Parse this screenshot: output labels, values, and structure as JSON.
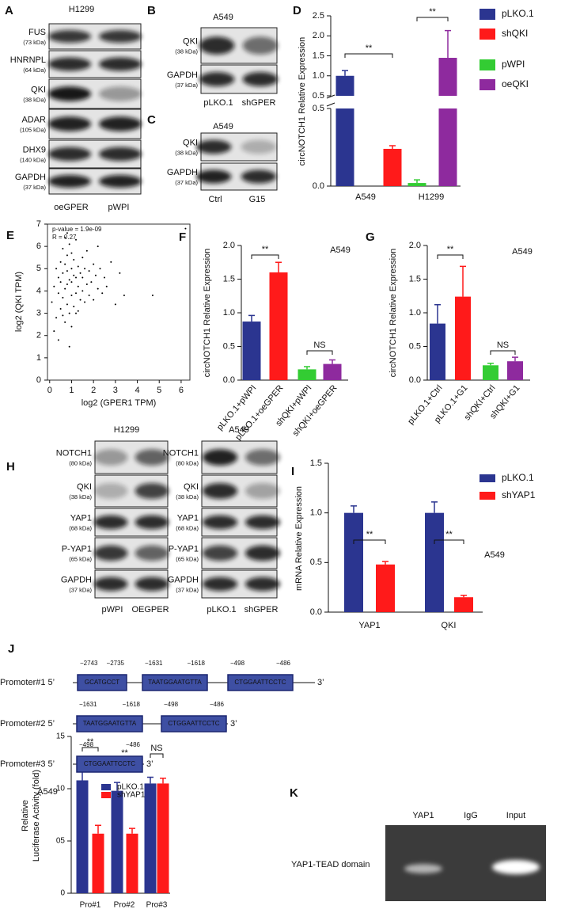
{
  "panel_labels": [
    "A",
    "B",
    "C",
    "D",
    "E",
    "F",
    "G",
    "H",
    "I",
    "J",
    "K"
  ],
  "blots": [
    {
      "title": "H1299",
      "rows": [
        {
          "name": "FUS",
          "size": "(73 kDa)"
        },
        {
          "name": "HNRNPL",
          "size": "(64 kDa)"
        },
        {
          "name": "QKI",
          "size": "(38 kDa)"
        },
        {
          "name": "ADAR",
          "size": "(105 kDa)"
        },
        {
          "name": "DHX9",
          "size": "(140 kDa)"
        },
        {
          "name": "GAPDH",
          "size": "(37 kDa)"
        }
      ],
      "lanes": [
        "oeGPER",
        "pWPI"
      ]
    },
    {
      "title": "A549",
      "rows": [
        {
          "name": "QKI",
          "size": "(38 kDa)"
        },
        {
          "name": "GAPDH",
          "size": "(37 kDa)"
        }
      ],
      "lanes": [
        "pLKO.1",
        "shGPER"
      ]
    },
    {
      "title": "A549",
      "rows": [
        {
          "name": "QKI",
          "size": "(38 kDa)"
        },
        {
          "name": "GAPDH",
          "size": "(37 kDa)"
        }
      ],
      "lanes": [
        "Ctrl",
        "G15"
      ]
    },
    {
      "title": "H1299",
      "rows": [
        {
          "name": "NOTCH1",
          "size": "(80 kDa)"
        },
        {
          "name": "QKI",
          "size": "(38 kDa)"
        },
        {
          "name": "YAP1",
          "size": "(68 kDa)"
        },
        {
          "name": "P-YAP1",
          "size": "(65 kDa)"
        },
        {
          "name": "GAPDH",
          "size": "(37 kDa)"
        }
      ],
      "lanes": [
        "pWPI",
        "OEGPER"
      ]
    },
    {
      "title": "A549",
      "rows": [
        {
          "name": "NOTCH1",
          "size": "(80 kDa)"
        },
        {
          "name": "QKI",
          "size": "(38 kDa)"
        },
        {
          "name": "YAP1",
          "size": "(68 kDa)"
        },
        {
          "name": "P-YAP1",
          "size": "(65 kDa)"
        },
        {
          "name": "GAPDH",
          "size": "(37 kDa)"
        }
      ],
      "lanes": [
        "pLKO.1",
        "shGPER"
      ]
    }
  ],
  "chart_data": [
    {
      "type": "bar",
      "ylabel": "circNOTCH1 Relative Expression",
      "categories": [
        "A549",
        "H1299"
      ],
      "series": [
        {
          "name": "pLKO.1",
          "color": "#2b3590",
          "values": [
            1.0,
            null
          ],
          "errors": [
            0.13,
            null
          ]
        },
        {
          "name": "shQKI",
          "color": "#ff1a1a",
          "values": [
            0.24,
            null
          ],
          "errors": [
            0.02,
            null
          ]
        },
        {
          "name": "pWPI",
          "color": "#33cc33",
          "values": [
            null,
            0.02
          ],
          "errors": [
            null,
            0.02
          ]
        },
        {
          "name": "oeQKI",
          "color": "#8e2a9e",
          "values": [
            null,
            1.45
          ],
          "errors": [
            null,
            0.68
          ]
        }
      ],
      "ylim_lower": [
        0,
        0.5
      ],
      "yticks_lower": [
        {
          "value": 0,
          "label": "0.0"
        },
        0.5
      ],
      "ylim_upper": [
        0.5,
        2.5
      ],
      "yticks_upper": [
        0.5,
        {
          "value": 1,
          "label": "1.0"
        },
        1.5,
        {
          "value": 2,
          "label": "2.0"
        },
        2.5
      ],
      "annotations": [
        "**",
        "**"
      ]
    },
    {
      "type": "scatter",
      "xlabel": "log2 (GPER1 TPM)",
      "ylabel": "log2 (QKI TPM)",
      "annotations": [
        "p-value = 1.9e-09",
        "R = 0.27"
      ],
      "color": "#000000",
      "x": [
        0.1,
        0.2,
        0.3,
        0.3,
        0.4,
        0.4,
        0.5,
        0.5,
        0.5,
        0.6,
        0.6,
        0.6,
        0.7,
        0.7,
        0.7,
        0.8,
        0.8,
        0.8,
        0.8,
        0.9,
        0.9,
        0.9,
        1.0,
        1.0,
        1.0,
        1.0,
        1.1,
        1.1,
        1.1,
        1.2,
        1.2,
        1.2,
        1.3,
        1.3,
        1.3,
        1.4,
        1.4,
        1.5,
        1.5,
        1.5,
        1.6,
        1.6,
        1.7,
        1.7,
        1.8,
        1.8,
        1.9,
        2.0,
        2.0,
        2.1,
        2.2,
        2.3,
        2.4,
        2.5,
        2.6,
        2.8,
        3.0,
        3.2,
        3.4,
        0.2,
        0.4,
        0.6,
        0.8,
        1.0,
        1.2,
        0.9,
        0.7,
        4.7,
        6.2,
        2.2
      ],
      "values": [
        3.5,
        4.2,
        2.8,
        5.0,
        3.9,
        4.6,
        3.2,
        4.4,
        5.3,
        3.7,
        4.8,
        5.9,
        2.6,
        4.1,
        5.2,
        3.4,
        4.3,
        4.9,
        5.6,
        3.0,
        4.5,
        6.1,
        3.8,
        4.4,
        5.0,
        5.7,
        3.3,
        4.7,
        5.4,
        3.9,
        4.6,
        6.3,
        3.1,
        4.2,
        5.1,
        3.6,
        4.8,
        4.0,
        4.6,
        5.5,
        3.5,
        5.0,
        4.3,
        5.8,
        3.8,
        4.9,
        4.4,
        3.6,
        5.2,
        4.7,
        4.1,
        5.0,
        3.9,
        4.6,
        4.2,
        5.3,
        3.4,
        4.8,
        3.8,
        2.2,
        1.8,
        2.9,
        6.6,
        2.4,
        3.0,
        1.5,
        6.4,
        3.8,
        6.8,
        6.0
      ],
      "xlim": [
        -0.1,
        6.4
      ],
      "ylim": [
        0,
        7
      ],
      "xticks": [
        0,
        1,
        2,
        3,
        4,
        5,
        6
      ],
      "yticks": [
        0,
        1,
        2,
        3,
        4,
        5,
        6,
        7
      ]
    },
    {
      "type": "bar",
      "title": "A549",
      "ylabel": "circNOTCH1 Relative Expression",
      "categories": [
        "pLKO.1+pWPI",
        "pLKO.1+oeGPER",
        "shQKI+pWPI",
        "shQKI+oeGPER"
      ],
      "values": [
        0.87,
        1.6,
        0.16,
        0.24
      ],
      "errors": [
        0.09,
        0.15,
        0.04,
        0.06
      ],
      "colors": [
        "#2b3590",
        "#ff1a1a",
        "#33cc33",
        "#8e2a9e"
      ],
      "ylim": [
        0,
        2
      ],
      "yticks": [
        {
          "value": 0,
          "label": "0.0"
        },
        0.5,
        {
          "value": 1,
          "label": "1.0"
        },
        1.5,
        {
          "value": 2,
          "label": "2.0"
        }
      ],
      "annotations": [
        "**",
        "NS"
      ]
    },
    {
      "type": "bar",
      "title": "A549",
      "ylabel": "circNOTCH1 Relative Expression",
      "categories": [
        "pLKO.1+Ctrl",
        "pLKO.1+G1",
        "shQKI+Ctrl",
        "shQKI+G1"
      ],
      "values": [
        0.84,
        1.24,
        0.22,
        0.28
      ],
      "errors": [
        0.28,
        0.45,
        0.03,
        0.06
      ],
      "colors": [
        "#2b3590",
        "#ff1a1a",
        "#33cc33",
        "#8e2a9e"
      ],
      "ylim": [
        0,
        2
      ],
      "yticks": [
        {
          "value": 0,
          "label": "0.0"
        },
        0.5,
        {
          "value": 1,
          "label": "1.0"
        },
        1.5,
        {
          "value": 2,
          "label": "2.0"
        }
      ],
      "annotations": [
        "**",
        "NS"
      ]
    },
    {
      "type": "bar",
      "title": "A549",
      "ylabel": "mRNA Relative Expression",
      "categories": [
        "YAP1",
        "QKI"
      ],
      "series": [
        {
          "name": "pLKO.1",
          "color": "#2b3590",
          "values": [
            1.0,
            1.0
          ],
          "errors": [
            0.07,
            0.11
          ]
        },
        {
          "name": "shYAP1",
          "color": "#ff1a1a",
          "values": [
            0.48,
            0.15
          ],
          "errors": [
            0.03,
            0.02
          ]
        }
      ],
      "ylim": [
        0,
        1.5
      ],
      "yticks": [
        {
          "value": 0,
          "label": "0.0"
        },
        0.5,
        {
          "value": 1,
          "label": "1.0"
        },
        1.5
      ],
      "annotations": [
        "**",
        "**"
      ]
    },
    {
      "type": "bar",
      "title": "A549",
      "ylabel": [
        "Relative",
        "Luciferase Activity (fold)"
      ],
      "categories": [
        "Pro#1",
        "Pro#2",
        "Pro#3"
      ],
      "series": [
        {
          "name": "pLKO.1",
          "color": "#2b3590",
          "values": [
            10.8,
            9.8,
            10.5
          ],
          "errors": [
            1.3,
            0.8,
            0.6
          ]
        },
        {
          "name": "shYAP1",
          "color": "#ff1a1a",
          "values": [
            5.7,
            5.7,
            10.5
          ],
          "errors": [
            0.8,
            0.5,
            0.5
          ]
        }
      ],
      "ylim": [
        0,
        15
      ],
      "yticks": [
        0,
        {
          "value": 5,
          "label": "05"
        },
        10,
        15
      ],
      "annotations": [
        "**",
        "**",
        "NS"
      ]
    }
  ],
  "promoters": [
    {
      "label": "Promoter#1 5’",
      "end": "3’",
      "sites": [
        {
          "seq": "GCATGCCT",
          "start": "−2743",
          "end": "−2735"
        },
        {
          "seq": "TAATGGAATGTTA",
          "start": "−1631",
          "end": "−1618"
        },
        {
          "seq": "CTGGAATTCCTC",
          "start": "−498",
          "end": "−486"
        }
      ]
    },
    {
      "label": "Promoter#2 5’",
      "end": "3’",
      "sites": [
        {
          "seq": "TAATGGAATGTTA",
          "start": "−1631",
          "end": "−1618"
        },
        {
          "seq": "CTGGAATTCCTC",
          "start": "−498",
          "end": "−486"
        }
      ]
    },
    {
      "label": "Promoter#3 5’",
      "end": "3’",
      "sites": [
        {
          "seq": "CTGGAATTCCTC",
          "start": "−498",
          "end": "−486"
        }
      ]
    }
  ],
  "gel": {
    "label": "YAP1-TEAD domain",
    "lanes": [
      "YAP1",
      "IgG",
      "Input"
    ]
  }
}
